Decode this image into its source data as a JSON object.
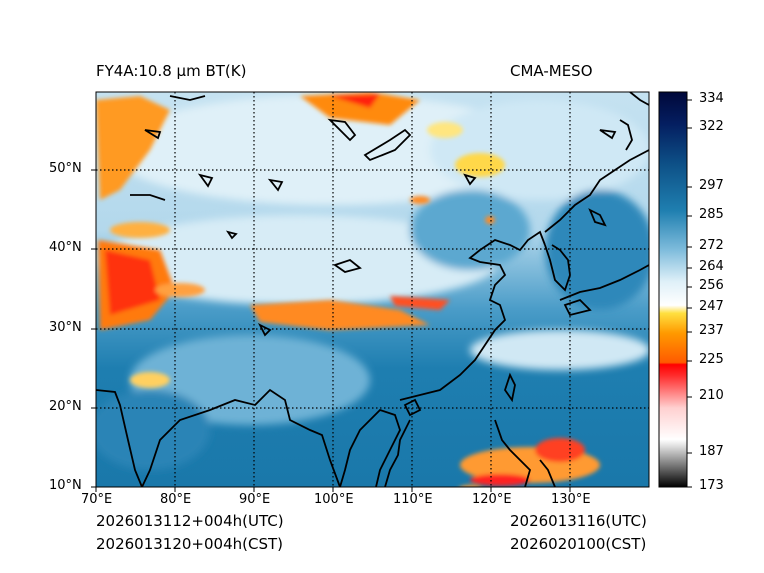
{
  "header": {
    "product_title": "FY4A:10.8 µm BT(K)",
    "model_name": "CMA-MESO"
  },
  "map": {
    "lon_range": [
      70,
      140
    ],
    "lat_range": [
      10,
      60
    ],
    "lon_ticks": [
      {
        "value": 70,
        "label": "70°E"
      },
      {
        "value": 80,
        "label": "80°E"
      },
      {
        "value": 90,
        "label": "90°E"
      },
      {
        "value": 100,
        "label": "100°E"
      },
      {
        "value": 110,
        "label": "110°E"
      },
      {
        "value": 120,
        "label": "120°E"
      },
      {
        "value": 130,
        "label": "130°E"
      }
    ],
    "lat_ticks": [
      {
        "value": 10,
        "label": "10°N"
      },
      {
        "value": 20,
        "label": "20°N"
      },
      {
        "value": 30,
        "label": "30°N"
      },
      {
        "value": 40,
        "label": "40°N"
      },
      {
        "value": 50,
        "label": "50°N"
      }
    ],
    "gridline_style": "dotted",
    "coastline_color": "#000000"
  },
  "colorbar": {
    "range": [
      173,
      340
    ],
    "ticks": [
      {
        "value": 334,
        "label": "334"
      },
      {
        "value": 322,
        "label": "322"
      },
      {
        "value": 297,
        "label": "297"
      },
      {
        "value": 285,
        "label": "285"
      },
      {
        "value": 272,
        "label": "272"
      },
      {
        "value": 264,
        "label": "264"
      },
      {
        "value": 256,
        "label": "256"
      },
      {
        "value": 247,
        "label": "247"
      },
      {
        "value": 237,
        "label": "237"
      },
      {
        "value": 225,
        "label": "225"
      },
      {
        "value": 210,
        "label": "210"
      },
      {
        "value": 187,
        "label": "187"
      },
      {
        "value": 173,
        "label": "173"
      }
    ],
    "colors": {
      "cold_black": "#000000",
      "grey": "#bdbdbd",
      "white": "#ffffff",
      "red": "#ff0000",
      "orange": "#ff8c00",
      "yellow": "#ffe040",
      "light_blue": "#cfe8f5",
      "mid_blue": "#1f7fb0",
      "navy": "#00083a"
    }
  },
  "footer": {
    "init_utc": "2026013112+004h(UTC)",
    "init_cst": "2026013120+004h(CST)",
    "valid_utc": "2026013116(UTC)",
    "valid_cst": "2026020100(CST)"
  }
}
